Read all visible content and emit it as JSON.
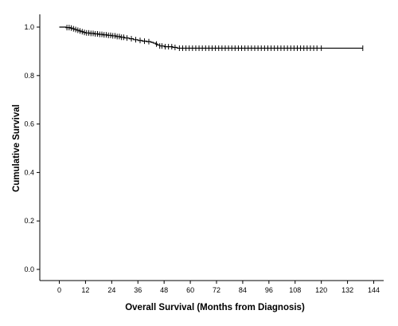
{
  "chart_data": {
    "type": "line",
    "title": "",
    "xlabel": "Overall Survival (Months from Diagnosis)",
    "ylabel": "Cumulative Survival",
    "xlim": [
      -6,
      146
    ],
    "ylim": [
      0,
      1.0
    ],
    "x_ticks": [
      0,
      12,
      24,
      36,
      48,
      60,
      72,
      84,
      96,
      108,
      120,
      132,
      144
    ],
    "y_ticks": [
      0.0,
      0.2,
      0.4,
      0.6,
      0.8,
      1.0
    ],
    "y_tick_labels": [
      "0.0",
      "0.2",
      "0.4",
      "0.6",
      "0.8",
      "1.0"
    ],
    "grid": false,
    "legend": "none",
    "series": [
      {
        "step": "post",
        "color": "#000000",
        "x": [
          0,
          3,
          5,
          6,
          7,
          8,
          9,
          10,
          11,
          12,
          14,
          16,
          18,
          20,
          22,
          24,
          26,
          28,
          30,
          32,
          34,
          36,
          38,
          40,
          42,
          43,
          44,
          45,
          46,
          48,
          52,
          54
        ],
        "y": [
          1.0,
          0.998,
          0.996,
          0.993,
          0.99,
          0.987,
          0.984,
          0.981,
          0.978,
          0.976,
          0.974,
          0.972,
          0.97,
          0.968,
          0.966,
          0.964,
          0.961,
          0.958,
          0.955,
          0.952,
          0.948,
          0.945,
          0.942,
          0.94,
          0.937,
          0.934,
          0.93,
          0.926,
          0.922,
          0.919,
          0.916,
          0.913
        ],
        "end_x": 139
      }
    ],
    "censor_marks": [
      3.5,
      4.5,
      5.5,
      6.5,
      7.5,
      8.5,
      9.5,
      10.5,
      11.5,
      12.5,
      13.5,
      14.5,
      15.5,
      16.5,
      17.5,
      18.5,
      19.5,
      20.5,
      21.5,
      22.5,
      23.5,
      24.5,
      25.5,
      26.5,
      27.5,
      28.5,
      29.5,
      31,
      33,
      35,
      37,
      39,
      41,
      44.5,
      46,
      47,
      48.5,
      50,
      51.5,
      53,
      55,
      56.5,
      58,
      59.5,
      61,
      62.5,
      64,
      65.5,
      67,
      68.5,
      70,
      71.5,
      73,
      74.5,
      76,
      77.5,
      79,
      80.5,
      82,
      83.5,
      85,
      86.5,
      88,
      89.5,
      91,
      92.5,
      94,
      95.5,
      97,
      98.5,
      100,
      101.5,
      103,
      104.5,
      106,
      107.5,
      109,
      110.5,
      112,
      113.5,
      115,
      116.5,
      118,
      120,
      139
    ]
  }
}
